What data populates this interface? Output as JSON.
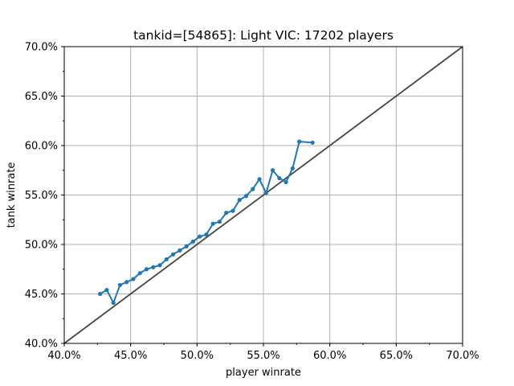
{
  "chart_data": {
    "type": "line",
    "title": "tankid=[54865]: Light VIC: 17202 players",
    "xlabel": "player winrate",
    "ylabel": "tank winrate",
    "xlim": [
      0.4,
      0.7
    ],
    "ylim": [
      0.4,
      0.7
    ],
    "x_ticks": [
      0.4,
      0.45,
      0.5,
      0.55,
      0.6,
      0.65,
      0.7
    ],
    "y_ticks": [
      0.4,
      0.45,
      0.5,
      0.55,
      0.6,
      0.65,
      0.7
    ],
    "x_tick_labels": [
      "40.0%",
      "45.0%",
      "50.0%",
      "55.0%",
      "60.0%",
      "65.0%",
      "70.0%"
    ],
    "y_tick_labels": [
      "40.0%",
      "45.0%",
      "50.0%",
      "55.0%",
      "60.0%",
      "65.0%",
      "70.0%"
    ],
    "grid": true,
    "reference_line": {
      "from": [
        0.4,
        0.4
      ],
      "to": [
        0.7,
        0.7
      ],
      "color": "#444444"
    },
    "series": [
      {
        "color": "#1f77b4",
        "points": [
          [
            0.427,
            0.45
          ],
          [
            0.432,
            0.454
          ],
          [
            0.437,
            0.441
          ],
          [
            0.442,
            0.459
          ],
          [
            0.447,
            0.462
          ],
          [
            0.452,
            0.465
          ],
          [
            0.457,
            0.471
          ],
          [
            0.462,
            0.475
          ],
          [
            0.467,
            0.477
          ],
          [
            0.472,
            0.479
          ],
          [
            0.477,
            0.485
          ],
          [
            0.482,
            0.49
          ],
          [
            0.487,
            0.494
          ],
          [
            0.492,
            0.498
          ],
          [
            0.497,
            0.503
          ],
          [
            0.502,
            0.508
          ],
          [
            0.507,
            0.51
          ],
          [
            0.512,
            0.521
          ],
          [
            0.517,
            0.523
          ],
          [
            0.522,
            0.532
          ],
          [
            0.527,
            0.534
          ],
          [
            0.532,
            0.545
          ],
          [
            0.537,
            0.549
          ],
          [
            0.542,
            0.556
          ],
          [
            0.547,
            0.566
          ],
          [
            0.552,
            0.552
          ],
          [
            0.557,
            0.575
          ],
          [
            0.562,
            0.567
          ],
          [
            0.567,
            0.563
          ],
          [
            0.572,
            0.577
          ],
          [
            0.577,
            0.604
          ],
          [
            0.587,
            0.603
          ]
        ]
      }
    ]
  }
}
